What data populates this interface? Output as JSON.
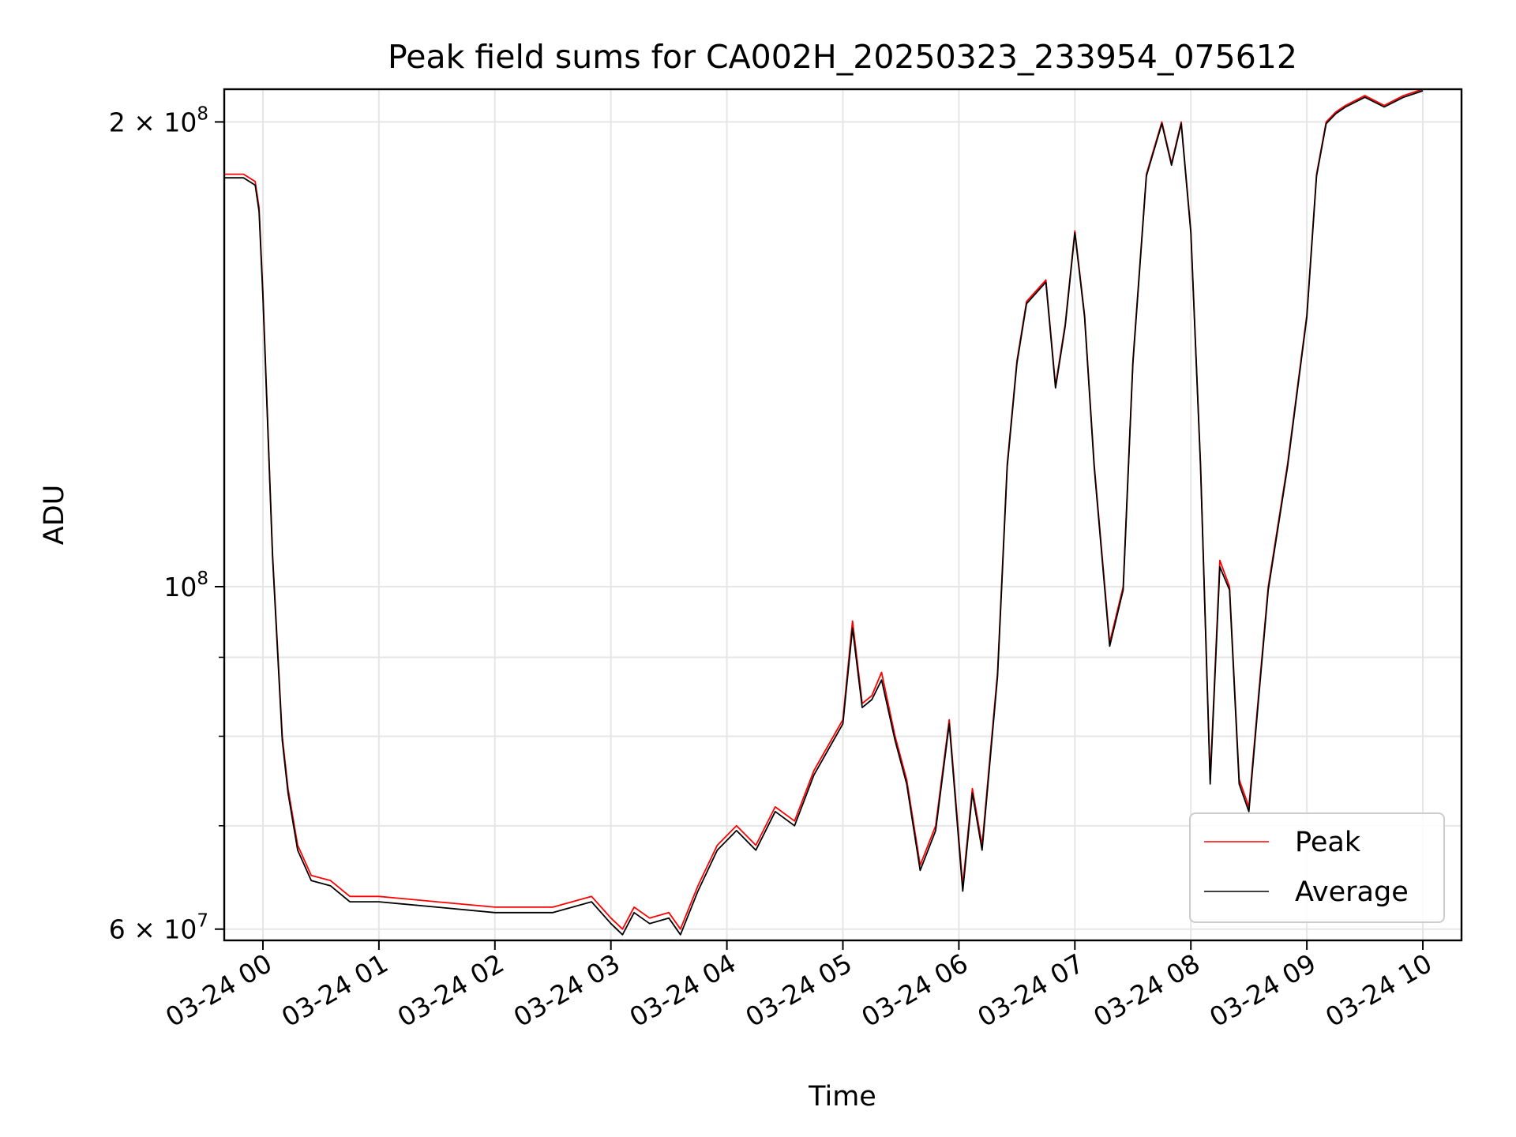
{
  "chart_data": {
    "type": "line",
    "title": "Peak field sums for CA002H_20250323_233954_075612",
    "xlabel": "Time",
    "ylabel": "ADU",
    "y_scale": "log",
    "ylim": [
      59000000,
      210000000
    ],
    "xlim": [
      "03-23 23:40",
      "03-24 10:20"
    ],
    "grid": true,
    "legend_position": "lower-right",
    "x_tick_labels": [
      "03-24 00",
      "03-24 01",
      "03-24 02",
      "03-24 03",
      "03-24 04",
      "03-24 05",
      "03-24 06",
      "03-24 07",
      "03-24 08",
      "03-24 09",
      "03-24 10"
    ],
    "y_tick_labels": [
      {
        "value": 200000000,
        "base": "2 × 10",
        "exp": "8"
      },
      {
        "value": 100000000,
        "base": "10",
        "exp": "8"
      },
      {
        "value": 60000000,
        "base": "6 × 10",
        "exp": "7"
      }
    ],
    "series": [
      {
        "name": "Peak",
        "color": "#ff0000",
        "x": [
          "03-23 23:40",
          "03-23 23:50",
          "03-23 23:56",
          "03-23 23:58",
          "03-24 00:00",
          "03-24 00:05",
          "03-24 00:10",
          "03-24 00:13",
          "03-24 00:18",
          "03-24 00:25",
          "03-24 00:35",
          "03-24 00:45",
          "03-24 01:00",
          "03-24 01:30",
          "03-24 02:00",
          "03-24 02:30",
          "03-24 02:50",
          "03-24 03:00",
          "03-24 03:06",
          "03-24 03:12",
          "03-24 03:20",
          "03-24 03:30",
          "03-24 03:36",
          "03-24 03:45",
          "03-24 03:55",
          "03-24 04:05",
          "03-24 04:15",
          "03-24 04:25",
          "03-24 04:35",
          "03-24 04:45",
          "03-24 05:00",
          "03-24 05:05",
          "03-24 05:10",
          "03-24 05:15",
          "03-24 05:20",
          "03-24 05:27",
          "03-24 05:33",
          "03-24 05:40",
          "03-24 05:48",
          "03-24 05:55",
          "03-24 06:02",
          "03-24 06:07",
          "03-24 06:12",
          "03-24 06:20",
          "03-24 06:25",
          "03-24 06:30",
          "03-24 06:35",
          "03-24 06:45",
          "03-24 06:50",
          "03-24 06:55",
          "03-24 07:00",
          "03-24 07:05",
          "03-24 07:10",
          "03-24 07:18",
          "03-24 07:25",
          "03-24 07:30",
          "03-24 07:37",
          "03-24 07:45",
          "03-24 07:50",
          "03-24 07:55",
          "03-24 08:00",
          "03-24 08:05",
          "03-24 08:10",
          "03-24 08:15",
          "03-24 08:20",
          "03-24 08:25",
          "03-24 08:30",
          "03-24 08:35",
          "03-24 08:40",
          "03-24 08:50",
          "03-24 09:00",
          "03-24 09:05",
          "03-24 09:10",
          "03-24 09:15",
          "03-24 09:20",
          "03-24 09:30",
          "03-24 09:40",
          "03-24 09:50",
          "03-24 10:00"
        ],
        "y": [
          185000000,
          185000000,
          183000000,
          176000000,
          155000000,
          105000000,
          80000000,
          74000000,
          68000000,
          65000000,
          64500000,
          63000000,
          63000000,
          62500000,
          62000000,
          62000000,
          63000000,
          61000000,
          60000000,
          62000000,
          61000000,
          61500000,
          60000000,
          64000000,
          68000000,
          70000000,
          68000000,
          72000000,
          70500000,
          76000000,
          82000000,
          95000000,
          84000000,
          85000000,
          88000000,
          80000000,
          75000000,
          66000000,
          70000000,
          82000000,
          64000000,
          74000000,
          68000000,
          88000000,
          120000000,
          140000000,
          153000000,
          158000000,
          135000000,
          148000000,
          170000000,
          150000000,
          120000000,
          92000000,
          100000000,
          140000000,
          185000000,
          200000000,
          188000000,
          200000000,
          170000000,
          120000000,
          75000000,
          104000000,
          100000000,
          75000000,
          72000000,
          85000000,
          100000000,
          120000000,
          150000000,
          185000000,
          200000000,
          203000000,
          205000000,
          208000000,
          205000000,
          208000000,
          210000000
        ]
      },
      {
        "name": "Average",
        "color": "#000000",
        "x": [
          "03-23 23:40",
          "03-23 23:50",
          "03-23 23:56",
          "03-23 23:58",
          "03-24 00:00",
          "03-24 00:05",
          "03-24 00:10",
          "03-24 00:13",
          "03-24 00:18",
          "03-24 00:25",
          "03-24 00:35",
          "03-24 00:45",
          "03-24 01:00",
          "03-24 01:30",
          "03-24 02:00",
          "03-24 02:30",
          "03-24 02:50",
          "03-24 03:00",
          "03-24 03:06",
          "03-24 03:12",
          "03-24 03:20",
          "03-24 03:30",
          "03-24 03:36",
          "03-24 03:45",
          "03-24 03:55",
          "03-24 04:05",
          "03-24 04:15",
          "03-24 04:25",
          "03-24 04:35",
          "03-24 04:45",
          "03-24 05:00",
          "03-24 05:05",
          "03-24 05:10",
          "03-24 05:15",
          "03-24 05:20",
          "03-24 05:27",
          "03-24 05:33",
          "03-24 05:40",
          "03-24 05:48",
          "03-24 05:55",
          "03-24 06:02",
          "03-24 06:07",
          "03-24 06:12",
          "03-24 06:20",
          "03-24 06:25",
          "03-24 06:30",
          "03-24 06:35",
          "03-24 06:45",
          "03-24 06:50",
          "03-24 06:55",
          "03-24 07:00",
          "03-24 07:05",
          "03-24 07:10",
          "03-24 07:18",
          "03-24 07:25",
          "03-24 07:30",
          "03-24 07:37",
          "03-24 07:45",
          "03-24 07:50",
          "03-24 07:55",
          "03-24 08:00",
          "03-24 08:05",
          "03-24 08:10",
          "03-24 08:15",
          "03-24 08:20",
          "03-24 08:25",
          "03-24 08:30",
          "03-24 08:35",
          "03-24 08:40",
          "03-24 08:50",
          "03-24 09:00",
          "03-24 09:05",
          "03-24 09:10",
          "03-24 09:15",
          "03-24 09:20",
          "03-24 09:30",
          "03-24 09:40",
          "03-24 09:50",
          "03-24 10:00"
        ],
        "y": [
          184000000,
          184000000,
          182000000,
          175000000,
          154000000,
          104500000,
          79500000,
          73500000,
          67500000,
          64500000,
          64000000,
          62500000,
          62500000,
          62000000,
          61500000,
          61500000,
          62500000,
          60500000,
          59500000,
          61500000,
          60500000,
          61000000,
          59500000,
          63500000,
          67500000,
          69500000,
          67500000,
          71500000,
          70000000,
          75500000,
          81500000,
          94000000,
          83500000,
          84500000,
          87000000,
          79500000,
          74500000,
          65500000,
          69500000,
          81500000,
          63500000,
          73500000,
          67500000,
          87500000,
          119500000,
          139500000,
          152500000,
          157500000,
          134500000,
          147500000,
          169500000,
          149500000,
          119500000,
          91500000,
          99500000,
          139500000,
          184500000,
          199500000,
          187500000,
          199500000,
          169500000,
          119500000,
          74500000,
          103000000,
          99500000,
          74500000,
          71500000,
          84500000,
          99500000,
          119500000,
          149500000,
          184500000,
          199500000,
          202500000,
          204500000,
          207500000,
          204500000,
          207500000,
          209500000
        ]
      }
    ]
  }
}
